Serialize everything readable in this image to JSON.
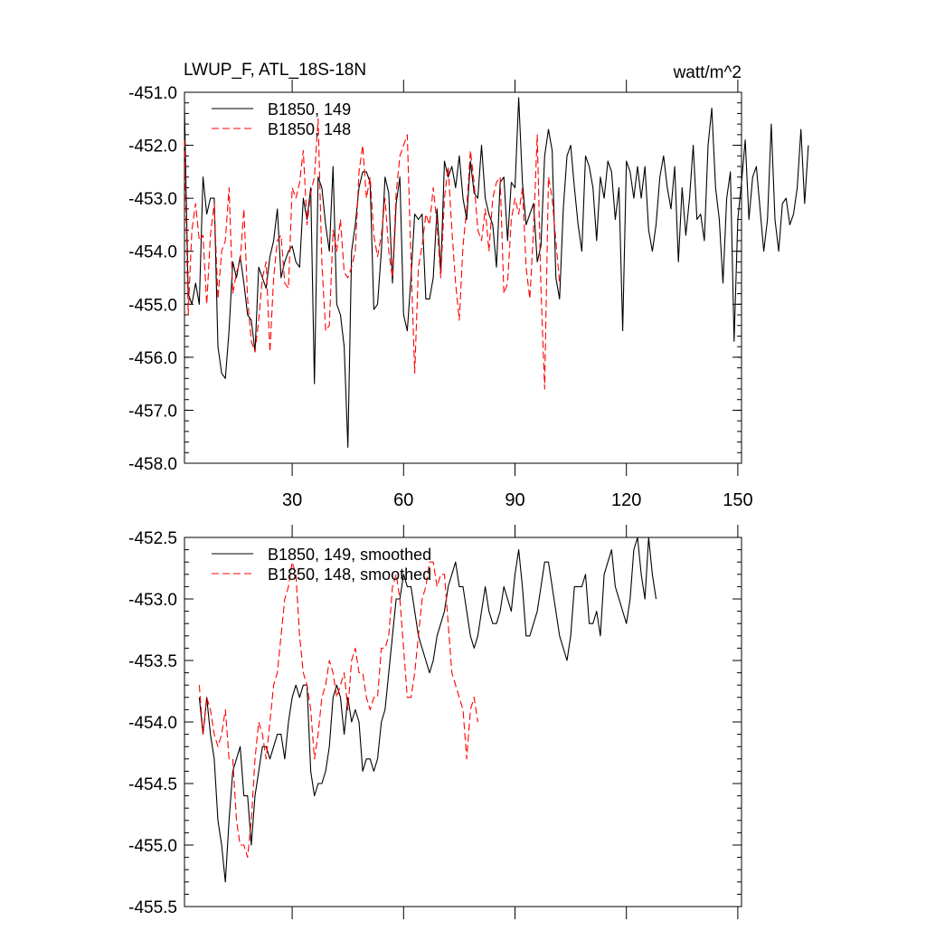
{
  "chart_data": [
    {
      "type": "line",
      "title": "LWUP_F, ATL_18S-18N",
      "units_label": "watt/m^2",
      "xlim": [
        1,
        151
      ],
      "ylim": [
        -458.0,
        -451.0
      ],
      "x_ticks": [
        30,
        60,
        90,
        120,
        150
      ],
      "x_tick_labels": [
        "30",
        "60",
        "90",
        "120",
        "150"
      ],
      "y_ticks": [
        -451.0,
        -452.0,
        -453.0,
        -454.0,
        -455.0,
        -456.0,
        -457.0,
        -458.0
      ],
      "y_tick_labels": [
        "-451.0",
        "-452.0",
        "-453.0",
        "-454.0",
        "-455.0",
        "-456.0",
        "-457.0",
        "-458.0"
      ],
      "legend_position": "top-left",
      "series": [
        {
          "name": "B1850, 149",
          "color": "#000000",
          "dash": "solid",
          "x_start": 1,
          "values": [
            -451.3,
            -454.8,
            -455.0,
            -454.6,
            -455.0,
            -452.6,
            -453.3,
            -453.0,
            -453.0,
            -455.8,
            -456.3,
            -456.4,
            -455.5,
            -454.2,
            -454.5,
            -454.1,
            -454.6,
            -455.2,
            -455.3,
            -455.9,
            -454.3,
            -454.5,
            -454.7,
            -454.1,
            -453.8,
            -453.2,
            -454.5,
            -454.2,
            -454.0,
            -453.9,
            -454.2,
            -454.3,
            -453.0,
            -453.4,
            -452.8,
            -456.5,
            -452.6,
            -452.8,
            -453.5,
            -454.0,
            -452.4,
            -455.0,
            -455.2,
            -455.8,
            -457.7,
            -454.0,
            -453.5,
            -452.8,
            -452.5,
            -452.5,
            -452.7,
            -455.1,
            -455.0,
            -454.0,
            -452.6,
            -452.9,
            -454.6,
            -453.1,
            -452.6,
            -455.2,
            -455.5,
            -454.5,
            -453.3,
            -453.4,
            -453.3,
            -454.9,
            -454.9,
            -454.5,
            -453.2,
            -454.4,
            -452.3,
            -452.6,
            -452.4,
            -452.8,
            -452.2,
            -453.0,
            -453.4,
            -452.3,
            -452.9,
            -453.0,
            -452.0,
            -453.0,
            -453.3,
            -453.5,
            -454.3,
            -452.7,
            -452.6,
            -453.8,
            -452.7,
            -452.8,
            -451.1,
            -452.7,
            -453.5,
            -453.3,
            -453.1,
            -454.2,
            -453.9,
            -452.2,
            -451.7,
            -452.1,
            -454.5,
            -454.9,
            -453.2,
            -452.2,
            -452.0,
            -452.8,
            -453.5,
            -454.0,
            -452.2,
            -452.4,
            -452.8,
            -453.8,
            -452.6,
            -453.0,
            -452.3,
            -452.5,
            -453.4,
            -452.8,
            -455.5,
            -452.3,
            -452.5,
            -453.0,
            -452.4,
            -453.0,
            -452.4,
            -453.6,
            -454.0,
            -453.5,
            -452.6,
            -452.2,
            -452.8,
            -453.2,
            -452.4,
            -454.2,
            -452.8,
            -453.7,
            -453.0,
            -452.0,
            -453.4,
            -453.3,
            -453.8,
            -452.0,
            -451.3,
            -452.8,
            -453.4,
            -454.6,
            -453.0,
            -452.5,
            -455.7,
            -453.4,
            -452.7,
            -451.9,
            -453.4,
            -452.6,
            -452.4,
            -453.2,
            -454.0,
            -453.4,
            -451.6,
            -453.4,
            -454.0,
            -453.1,
            -453.0,
            -453.5,
            -453.3,
            -452.8,
            -451.7,
            -453.1,
            -452.0
          ]
        },
        {
          "name": "B1850, 148",
          "color": "#ff0000",
          "dash": "dashed",
          "x_start": 1,
          "values": [
            -451.9,
            -455.2,
            -453.6,
            -453.1,
            -453.8,
            -453.7,
            -455.0,
            -453.7,
            -453.1,
            -454.9,
            -454.0,
            -453.8,
            -452.8,
            -454.8,
            -454.4,
            -454.2,
            -453.2,
            -454.9,
            -455.7,
            -455.9,
            -455.3,
            -454.5,
            -454.2,
            -455.9,
            -454.5,
            -453.8,
            -453.7,
            -454.6,
            -454.7,
            -452.8,
            -453.0,
            -452.7,
            -452.1,
            -453.5,
            -452.9,
            -452.6,
            -451.5,
            -454.2,
            -455.5,
            -455.4,
            -453.6,
            -454.0,
            -453.4,
            -454.4,
            -454.5,
            -454.3,
            -454.0,
            -452.5,
            -452.0,
            -453.0,
            -452.6,
            -453.7,
            -454.1,
            -453.7,
            -453.0,
            -454.0,
            -454.5,
            -452.9,
            -452.2,
            -452.0,
            -451.8,
            -454.2,
            -456.3,
            -454.3,
            -453.9,
            -453.3,
            -453.5,
            -452.8,
            -453.5,
            -454.5,
            -453.0,
            -452.4,
            -453.6,
            -454.6,
            -455.3,
            -453.9,
            -453.2,
            -452.1,
            -452.7,
            -453.6,
            -453.8,
            -453.2,
            -454.0,
            -453.0,
            -452.7,
            -452.6,
            -454.8,
            -454.6,
            -453.4,
            -453.0,
            -453.3,
            -452.8,
            -454.3,
            -454.9,
            -453.6,
            -451.8,
            -454.7,
            -456.6,
            -452.6,
            -453.0,
            -453.8,
            -454.6
          ]
        }
      ]
    },
    {
      "type": "line",
      "xlim": [
        1,
        151
      ],
      "ylim": [
        -455.5,
        -452.5
      ],
      "y_ticks": [
        -452.5,
        -453.0,
        -453.5,
        -454.0,
        -454.5,
        -455.0,
        -455.5
      ],
      "y_tick_labels": [
        "-452.5",
        "-453.0",
        "-453.5",
        "-454.0",
        "-454.5",
        "-455.0",
        "-455.5"
      ],
      "x_ticks": [
        30,
        60,
        90,
        120,
        150
      ],
      "legend_position": "top-left",
      "series": [
        {
          "name": "B1850, 149, smoothed",
          "color": "#000000",
          "dash": "solid",
          "x_start": 5,
          "values": [
            -453.8,
            -454.1,
            -453.8,
            -454.1,
            -454.3,
            -454.8,
            -455.0,
            -455.3,
            -454.8,
            -454.4,
            -454.3,
            -454.2,
            -454.6,
            -454.6,
            -455.0,
            -454.6,
            -454.4,
            -454.2,
            -454.2,
            -454.3,
            -454.2,
            -454.1,
            -454.1,
            -454.3,
            -454.0,
            -453.8,
            -453.7,
            -453.8,
            -453.7,
            -453.7,
            -454.4,
            -454.6,
            -454.5,
            -454.5,
            -454.4,
            -454.2,
            -453.8,
            -453.7,
            -453.8,
            -454.1,
            -453.8,
            -454.0,
            -453.9,
            -454.0,
            -454.4,
            -454.3,
            -454.3,
            -454.4,
            -454.3,
            -454.0,
            -453.9,
            -453.6,
            -453.3,
            -453.0,
            -453.0,
            -452.8,
            -452.9,
            -452.9,
            -453.1,
            -453.3,
            -453.4,
            -453.5,
            -453.6,
            -453.5,
            -453.3,
            -453.2,
            -453.1,
            -452.9,
            -452.8,
            -452.7,
            -452.9,
            -452.9,
            -453.1,
            -453.3,
            -453.4,
            -453.3,
            -453.1,
            -452.9,
            -453.1,
            -453.2,
            -453.2,
            -453.1,
            -452.9,
            -453.0,
            -453.1,
            -452.8,
            -452.6,
            -452.9,
            -453.3,
            -453.3,
            -453.2,
            -453.1,
            -452.9,
            -452.7,
            -452.7,
            -452.9,
            -453.1,
            -453.3,
            -453.4,
            -453.5,
            -453.3,
            -452.9,
            -452.9,
            -452.9,
            -452.8,
            -453.2,
            -453.2,
            -453.1,
            -453.3,
            -452.8,
            -452.7,
            -452.6,
            -452.9,
            -453.0,
            -453.1,
            -453.2,
            -453.0,
            -452.6,
            -452.5,
            -452.8,
            -453.0,
            -452.5,
            -452.8,
            -453.0
          ]
        },
        {
          "name": "B1850, 148, smoothed",
          "color": "#ff0000",
          "dash": "dashed",
          "x_start": 5,
          "values": [
            -453.7,
            -454.1,
            -453.8,
            -453.9,
            -454.1,
            -454.2,
            -454.1,
            -453.9,
            -454.3,
            -454.3,
            -454.8,
            -455.0,
            -455.0,
            -455.1,
            -454.8,
            -454.3,
            -454.0,
            -454.1,
            -454.3,
            -454.0,
            -453.7,
            -453.6,
            -453.3,
            -453.0,
            -452.9,
            -452.7,
            -452.8,
            -453.3,
            -453.6,
            -453.7,
            -453.9,
            -454.3,
            -454.1,
            -453.8,
            -453.7,
            -453.5,
            -453.6,
            -453.8,
            -453.7,
            -453.6,
            -453.9,
            -453.5,
            -453.4,
            -453.6,
            -453.6,
            -453.8,
            -453.9,
            -453.8,
            -453.8,
            -453.4,
            -453.4,
            -453.3,
            -452.9,
            -452.8,
            -453.0,
            -453.4,
            -453.8,
            -453.8,
            -453.6,
            -453.3,
            -453.0,
            -452.9,
            -452.7,
            -452.7,
            -452.9,
            -452.8,
            -452.8,
            -453.2,
            -453.6,
            -453.7,
            -453.8,
            -453.9,
            -454.3,
            -453.9,
            -453.8,
            -454.0
          ]
        }
      ]
    }
  ]
}
